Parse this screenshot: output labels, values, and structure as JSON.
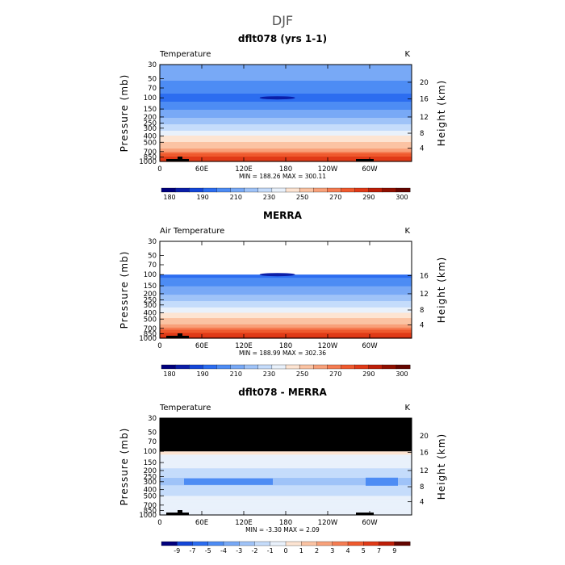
{
  "figure": {
    "title": "DJF"
  },
  "colors": {
    "temperature_scale": [
      "#00007d",
      "#0b1ea8",
      "#1346d8",
      "#2c6df0",
      "#4d8cf4",
      "#78a9f6",
      "#9fc3f8",
      "#c5dcfb",
      "#e9f1fb",
      "#fde4d2",
      "#fbc3a3",
      "#f8a17a",
      "#f57c52",
      "#ef5a2e",
      "#e03a17",
      "#bd1e08",
      "#8f0f00",
      "#640500"
    ],
    "difference_scale": [
      "#00007d",
      "#0b1ea8",
      "#1346d8",
      "#2c6df0",
      "#4d8cf4",
      "#78a9f6",
      "#9fc3f8",
      "#c5dcfb",
      "#e9f1fb",
      "#fde4d2",
      "#fbc3a3",
      "#f8a17a",
      "#f57c52",
      "#ef5a2e",
      "#e03a17",
      "#bd1e08",
      "#8f0f00",
      "#640500"
    ],
    "masked": "#000000"
  },
  "chart_data": [
    {
      "type": "heatmap",
      "title": "dflt078 (yrs 1-1)",
      "variable": "Temperature",
      "units": "K",
      "ylabel": "Pressure (mb)",
      "y2label": "Height (km)",
      "x_ticks": [
        "0",
        "60E",
        "120E",
        "180",
        "120W",
        "60W"
      ],
      "x_range": [
        0,
        360
      ],
      "y_ticks": [
        "30",
        "50",
        "70",
        "100",
        "150",
        "200",
        "250",
        "300",
        "400",
        "500",
        "700",
        "850",
        "1000"
      ],
      "y_range_mb": [
        1000,
        30
      ],
      "y_log": true,
      "height_ticks_km": [
        "4",
        "8",
        "12",
        "16",
        "20"
      ],
      "min": "188.26",
      "max": "300.11",
      "stats": "MIN = 188.26  MAX = 300.11",
      "colorbar_labels": [
        "180",
        "190",
        "210",
        "230",
        "250",
        "270",
        "290",
        "300"
      ],
      "levels": [
        {
          "p": 30,
          "T": 215
        },
        {
          "p": 50,
          "T": 211
        },
        {
          "p": 70,
          "T": 205
        },
        {
          "p": 100,
          "T": 196
        },
        {
          "p": 150,
          "T": 208
        },
        {
          "p": 200,
          "T": 219
        },
        {
          "p": 250,
          "T": 228
        },
        {
          "p": 300,
          "T": 236
        },
        {
          "p": 400,
          "T": 250
        },
        {
          "p": 500,
          "T": 261
        },
        {
          "p": 700,
          "T": 276
        },
        {
          "p": 850,
          "T": 285
        },
        {
          "p": 1000,
          "T": 291
        }
      ],
      "masked_top": false
    },
    {
      "type": "heatmap",
      "title": "MERRA",
      "variable": "Air Temperature",
      "units": "K",
      "ylabel": "Pressure (mb)",
      "y2label": "Height (km)",
      "x_ticks": [
        "0",
        "60E",
        "120E",
        "180",
        "120W",
        "60W"
      ],
      "x_range": [
        0,
        360
      ],
      "y_ticks": [
        "30",
        "50",
        "70",
        "100",
        "150",
        "200",
        "250",
        "300",
        "400",
        "500",
        "700",
        "850",
        "1000"
      ],
      "y_range_mb": [
        1000,
        30
      ],
      "y_log": true,
      "height_ticks_km": [
        "4",
        "8",
        "12",
        "16"
      ],
      "min": "188.99",
      "max": "302.36",
      "stats": "MIN = 188.99  MAX = 302.36",
      "colorbar_labels": [
        "180",
        "190",
        "210",
        "230",
        "250",
        "270",
        "290",
        "300"
      ],
      "levels": [
        {
          "p": 100,
          "T": 196
        },
        {
          "p": 150,
          "T": 209
        },
        {
          "p": 200,
          "T": 219
        },
        {
          "p": 250,
          "T": 228
        },
        {
          "p": 300,
          "T": 236
        },
        {
          "p": 400,
          "T": 250
        },
        {
          "p": 500,
          "T": 262
        },
        {
          "p": 700,
          "T": 277
        },
        {
          "p": 850,
          "T": 286
        },
        {
          "p": 1000,
          "T": 292
        }
      ],
      "no_data_above_mb": 100
    },
    {
      "type": "heatmap",
      "title": "dflt078 - MERRA",
      "variable": "Temperature",
      "units": "K",
      "ylabel": "Pressure (mb)",
      "y2label": "Height (km)",
      "x_ticks": [
        "0",
        "60E",
        "120E",
        "180",
        "120W",
        "60W"
      ],
      "x_range": [
        0,
        360
      ],
      "y_ticks": [
        "30",
        "50",
        "70",
        "100",
        "150",
        "200",
        "250",
        "300",
        "400",
        "500",
        "700",
        "850",
        "1000"
      ],
      "y_range_mb": [
        1000,
        30
      ],
      "y_log": true,
      "height_ticks_km": [
        "4",
        "8",
        "12",
        "16",
        "20"
      ],
      "min": "-3.30",
      "max": "2.09",
      "stats": "MIN =   -3.30  MAX =    2.09",
      "colorbar_labels": [
        "-9",
        "-7",
        "-5",
        "-4",
        "-3",
        "-2",
        "-1",
        "0",
        "1",
        "2",
        "3",
        "4",
        "5",
        "7",
        "9"
      ],
      "levels": [
        {
          "p": 100,
          "T": 0.2
        },
        {
          "p": 150,
          "T": -0.6
        },
        {
          "p": 200,
          "T": -1.2
        },
        {
          "p": 250,
          "T": -1.8
        },
        {
          "p": 300,
          "T": -2.4
        },
        {
          "p": 400,
          "T": -1.4
        },
        {
          "p": 500,
          "T": -1.0
        },
        {
          "p": 700,
          "T": -0.8
        },
        {
          "p": 850,
          "T": -0.4
        },
        {
          "p": 1000,
          "T": -0.2
        }
      ],
      "masked_above_mb": 100
    }
  ]
}
